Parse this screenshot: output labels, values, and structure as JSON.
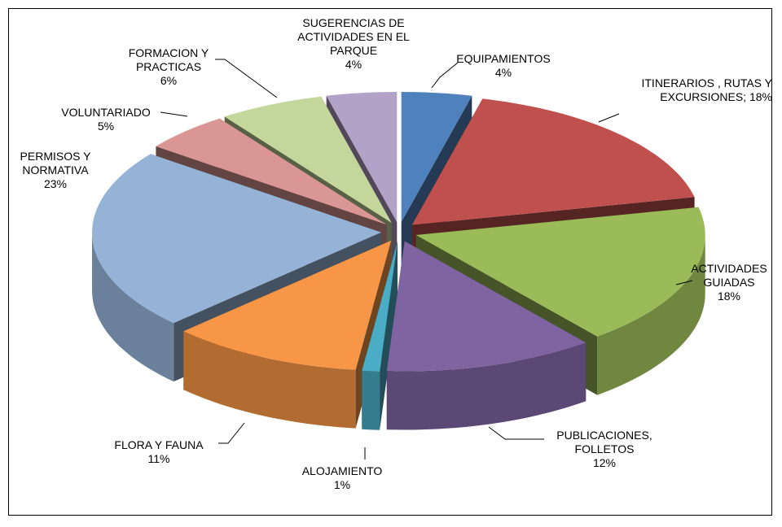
{
  "chart_data": {
    "type": "pie3d",
    "categories": [
      "EQUIPAMIENTOS",
      "ITINERARIOS , RUTAS Y EXCURSIONES;",
      "ACTIVIDADES GUIADAS",
      "PUBLICACIONES, FOLLETOS",
      "ALOJAMIENTO",
      "FLORA Y FAUNA",
      "PERMISOS Y NORMATIVA",
      "VOLUNTARIADO",
      "FORMACION Y PRACTICAS",
      "SUGERENCIAS DE ACTIVIDADES EN EL PARQUE"
    ],
    "values": [
      4,
      18,
      18,
      12,
      1,
      11,
      23,
      5,
      6,
      4
    ],
    "value_labels": [
      "4%",
      "18%",
      "18%",
      "12%",
      "1%",
      "11%",
      "23%",
      "5%",
      "6%",
      "4%"
    ],
    "colors": [
      "#4f81bd",
      "#c0504d",
      "#9bbb59",
      "#8064a2",
      "#4bacc6",
      "#f79646",
      "#95b3d7",
      "#d99694",
      "#c3d69b",
      "#b3a2c7"
    ]
  }
}
